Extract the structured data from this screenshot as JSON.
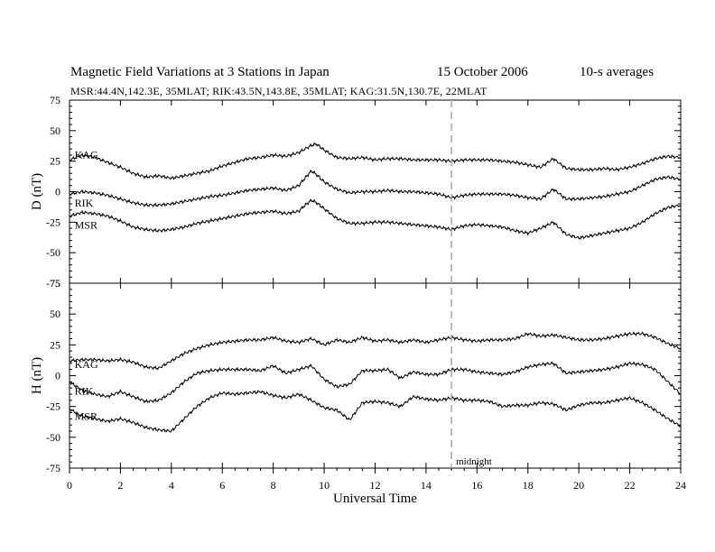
{
  "header": {
    "title": "Magnetic Field Variations at 3 Stations in Japan",
    "date": "15 October 2006",
    "averaging": "10-s averages",
    "subtitle": "MSR:44.4N,142.3E, 35MLAT;  RIK:43.5N,143.8E, 35MLAT;  KAG:31.5N,130.7E, 22MLAT"
  },
  "chart_data": [
    {
      "type": "line",
      "ylabel": "D (nT)",
      "ylim": [
        -75,
        75
      ],
      "yticks": [
        75,
        50,
        25,
        0,
        -25,
        -50,
        -75
      ],
      "xlim": [
        0,
        24
      ],
      "series": [
        {
          "name": "KAG",
          "x": [
            0,
            0.5,
            1,
            1.5,
            2,
            2.5,
            3,
            3.5,
            4,
            4.5,
            5,
            5.5,
            6,
            6.5,
            7,
            7.5,
            8,
            8.5,
            9,
            9.5,
            9.7,
            10,
            10.5,
            11,
            11.5,
            12,
            12.5,
            13,
            13.5,
            14,
            14.5,
            15,
            15.5,
            16,
            16.5,
            17,
            17.5,
            18,
            18.5,
            19,
            19.5,
            20,
            20.5,
            21,
            21.5,
            22,
            22.5,
            23,
            23.5,
            24
          ],
          "values": [
            26,
            30,
            28,
            24,
            20,
            15,
            12,
            13,
            11,
            13,
            15,
            17,
            21,
            24,
            27,
            28,
            30,
            29,
            32,
            38,
            39,
            34,
            28,
            27,
            28,
            26,
            27,
            27,
            26,
            26,
            26,
            25,
            26,
            26,
            26,
            25,
            24,
            22,
            20,
            27,
            19,
            18,
            18,
            19,
            18,
            20,
            23,
            27,
            29,
            28
          ]
        },
        {
          "name": "RIK",
          "x": [
            0,
            0.5,
            1,
            1.5,
            2,
            2.5,
            3,
            3.5,
            4,
            4.5,
            5,
            5.5,
            6,
            6.5,
            7,
            7.5,
            8,
            8.5,
            9,
            9.2,
            9.5,
            9.7,
            10,
            10.5,
            11,
            11.5,
            12,
            12.5,
            13,
            13.5,
            14,
            14.5,
            15,
            15.5,
            16,
            16.5,
            17,
            17.5,
            18,
            18.5,
            19,
            19.5,
            20,
            20.5,
            21,
            21.5,
            22,
            22.5,
            23,
            23.5,
            24
          ],
          "values": [
            -2,
            0,
            -1,
            -3,
            -6,
            -9,
            -11,
            -11,
            -10,
            -8,
            -6,
            -4,
            -3,
            -1,
            1,
            2,
            3,
            1,
            5,
            10,
            17,
            14,
            8,
            2,
            -1,
            0,
            0,
            1,
            0,
            0,
            -1,
            -2,
            -5,
            -3,
            -2,
            -2,
            -2,
            -3,
            -5,
            -6,
            2,
            -6,
            -6,
            -5,
            -4,
            -2,
            0,
            5,
            10,
            12,
            10
          ]
        },
        {
          "name": "MSR",
          "x": [
            0,
            0.5,
            1,
            1.5,
            2,
            2.5,
            3,
            3.5,
            4,
            4.5,
            5,
            5.5,
            6,
            6.5,
            7,
            7.5,
            8,
            8.5,
            9,
            9.2,
            9.5,
            9.7,
            10,
            10.5,
            11,
            11.5,
            12,
            12.5,
            13,
            13.5,
            14,
            14.5,
            15,
            15.5,
            16,
            16.5,
            17,
            17.5,
            18,
            18.5,
            19,
            19.5,
            20,
            20.5,
            21,
            21.5,
            22,
            22.5,
            23,
            23.5,
            24
          ],
          "values": [
            -20,
            -17,
            -18,
            -20,
            -24,
            -29,
            -31,
            -32,
            -31,
            -29,
            -26,
            -24,
            -22,
            -20,
            -18,
            -17,
            -16,
            -18,
            -16,
            -12,
            -7,
            -9,
            -14,
            -22,
            -26,
            -26,
            -25,
            -25,
            -26,
            -27,
            -28,
            -29,
            -31,
            -28,
            -27,
            -28,
            -29,
            -32,
            -34,
            -30,
            -25,
            -35,
            -38,
            -36,
            -34,
            -32,
            -30,
            -25,
            -18,
            -13,
            -11
          ]
        }
      ]
    },
    {
      "type": "line",
      "ylabel": "H (nT)",
      "ylim": [
        -75,
        75
      ],
      "yticks": [
        75,
        50,
        25,
        0,
        -25,
        -50,
        -75
      ],
      "xlim": [
        0,
        24
      ],
      "xticks": [
        0,
        2,
        4,
        6,
        8,
        10,
        12,
        14,
        16,
        18,
        20,
        22,
        24
      ],
      "xlabel": "Universal Time",
      "annotation": {
        "x": 15,
        "label": "midnight"
      },
      "series": [
        {
          "name": "KAG",
          "x": [
            0,
            0.5,
            1,
            1.5,
            2,
            2.5,
            3,
            3.5,
            4,
            4.5,
            5,
            5.5,
            6,
            6.5,
            7,
            7.5,
            8,
            8.5,
            9,
            9.5,
            10,
            10.5,
            11,
            11.5,
            12,
            12.5,
            13,
            13.5,
            14,
            14.5,
            15,
            15.5,
            16,
            16.5,
            17,
            17.5,
            18,
            18.5,
            19,
            19.5,
            20,
            20.5,
            21,
            21.5,
            22,
            22.5,
            23,
            23.5,
            24
          ],
          "values": [
            12,
            13,
            13,
            12,
            13,
            11,
            7,
            6,
            12,
            18,
            22,
            25,
            27,
            28,
            29,
            29,
            31,
            28,
            27,
            30,
            25,
            29,
            27,
            31,
            28,
            29,
            27,
            29,
            27,
            29,
            31,
            29,
            28,
            29,
            29,
            30,
            34,
            32,
            33,
            31,
            29,
            29,
            30,
            32,
            34,
            34,
            31,
            26,
            22
          ]
        },
        {
          "name": "RIK",
          "x": [
            0,
            0.5,
            1,
            1.5,
            2,
            2.5,
            3,
            3.5,
            4,
            4.5,
            5,
            5.5,
            6,
            6.5,
            7,
            7.5,
            8,
            8.5,
            9,
            9.5,
            10,
            10.5,
            11,
            11.5,
            12,
            12.5,
            13,
            13.5,
            14,
            14.5,
            15,
            15.5,
            16,
            16.5,
            17,
            17.5,
            18,
            18.5,
            19,
            19.5,
            20,
            20.5,
            21,
            21.5,
            22,
            22.5,
            23,
            23.5,
            24
          ],
          "values": [
            -5,
            -12,
            -15,
            -17,
            -13,
            -17,
            -21,
            -20,
            -14,
            -5,
            2,
            4,
            5,
            5,
            5,
            4,
            8,
            2,
            5,
            8,
            -3,
            -9,
            -7,
            4,
            4,
            5,
            -2,
            3,
            1,
            1,
            5,
            5,
            3,
            2,
            1,
            3,
            7,
            9,
            10,
            2,
            3,
            4,
            5,
            7,
            10,
            9,
            5,
            -5,
            -15
          ]
        },
        {
          "name": "MSR",
          "x": [
            0,
            0.5,
            1,
            1.5,
            2,
            2.5,
            3,
            3.5,
            4,
            4.5,
            5,
            5.5,
            6,
            6.5,
            7,
            7.5,
            8,
            8.5,
            9,
            9.5,
            10,
            10.5,
            11,
            11.5,
            12,
            12.5,
            13,
            13.5,
            14,
            14.5,
            15,
            15.5,
            16,
            16.5,
            17,
            17.5,
            18,
            18.5,
            19,
            19.5,
            20,
            20.5,
            21,
            21.5,
            22,
            22.5,
            23,
            23.5,
            24
          ],
          "values": [
            -27,
            -33,
            -35,
            -37,
            -35,
            -38,
            -42,
            -44,
            -45,
            -35,
            -25,
            -18,
            -14,
            -15,
            -14,
            -13,
            -16,
            -18,
            -15,
            -20,
            -26,
            -28,
            -36,
            -22,
            -21,
            -22,
            -25,
            -17,
            -19,
            -20,
            -18,
            -20,
            -20,
            -21,
            -25,
            -24,
            -24,
            -22,
            -23,
            -28,
            -24,
            -22,
            -22,
            -20,
            -18,
            -22,
            -28,
            -35,
            -41
          ]
        }
      ]
    }
  ]
}
